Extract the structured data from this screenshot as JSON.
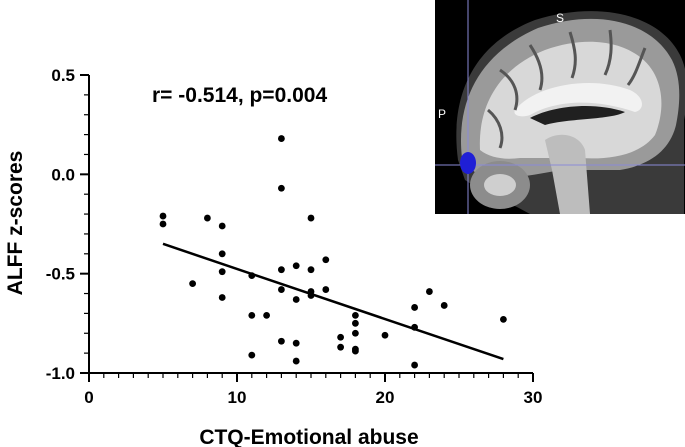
{
  "chart_data": {
    "type": "scatter",
    "title": "",
    "annotation": "r= -0.514, p=0.004",
    "xlabel": "CTQ-Emotional abuse",
    "ylabel": "ALFF z-scores",
    "xlim": [
      0,
      30
    ],
    "ylim": [
      -1.0,
      0.5
    ],
    "x_ticks": [
      0,
      10,
      20,
      30
    ],
    "x_tick_labels": [
      "0",
      "10",
      "20",
      "30"
    ],
    "y_ticks": [
      0.5,
      0.0,
      -0.5,
      -1.0
    ],
    "y_tick_labels": [
      "0.5",
      "0.0",
      "-0.5",
      "-1.0"
    ],
    "grid": false,
    "legend": "none",
    "points": [
      {
        "x": 5,
        "y": -0.21
      },
      {
        "x": 5,
        "y": -0.25
      },
      {
        "x": 7,
        "y": -0.55
      },
      {
        "x": 8,
        "y": -0.22
      },
      {
        "x": 9,
        "y": -0.26
      },
      {
        "x": 9,
        "y": -0.4
      },
      {
        "x": 9,
        "y": -0.49
      },
      {
        "x": 9,
        "y": -0.62
      },
      {
        "x": 11,
        "y": -0.51
      },
      {
        "x": 11,
        "y": -0.71
      },
      {
        "x": 11,
        "y": -0.91
      },
      {
        "x": 12,
        "y": -0.71
      },
      {
        "x": 13,
        "y": 0.18
      },
      {
        "x": 13,
        "y": -0.07
      },
      {
        "x": 13,
        "y": -0.48
      },
      {
        "x": 13,
        "y": -0.58
      },
      {
        "x": 13,
        "y": -0.84
      },
      {
        "x": 14,
        "y": -0.46
      },
      {
        "x": 14,
        "y": -0.63
      },
      {
        "x": 14,
        "y": -0.85
      },
      {
        "x": 14,
        "y": -0.94
      },
      {
        "x": 15,
        "y": -0.22
      },
      {
        "x": 15,
        "y": -0.48
      },
      {
        "x": 15,
        "y": -0.59
      },
      {
        "x": 15,
        "y": -0.61
      },
      {
        "x": 16,
        "y": -0.43
      },
      {
        "x": 16,
        "y": -0.58
      },
      {
        "x": 17,
        "y": -0.82
      },
      {
        "x": 17,
        "y": -0.87
      },
      {
        "x": 18,
        "y": -0.71
      },
      {
        "x": 18,
        "y": -0.75
      },
      {
        "x": 18,
        "y": -0.8
      },
      {
        "x": 18,
        "y": -0.88
      },
      {
        "x": 18,
        "y": -0.89
      },
      {
        "x": 20,
        "y": -0.81
      },
      {
        "x": 22,
        "y": -0.67
      },
      {
        "x": 22,
        "y": -0.77
      },
      {
        "x": 22,
        "y": -0.96
      },
      {
        "x": 23,
        "y": -0.59
      },
      {
        "x": 24,
        "y": -0.66
      },
      {
        "x": 28,
        "y": -0.73
      }
    ],
    "fit_line": {
      "x": [
        5,
        28
      ],
      "y": [
        -0.35,
        -0.93
      ]
    },
    "point_color": "#000000",
    "line_color": "#000000"
  },
  "inset": {
    "labels": {
      "superior": "S",
      "posterior": "P"
    },
    "highlight_color": "#1f1fd6",
    "crosshair_color": "#8a8ad8",
    "background": "#000000"
  }
}
